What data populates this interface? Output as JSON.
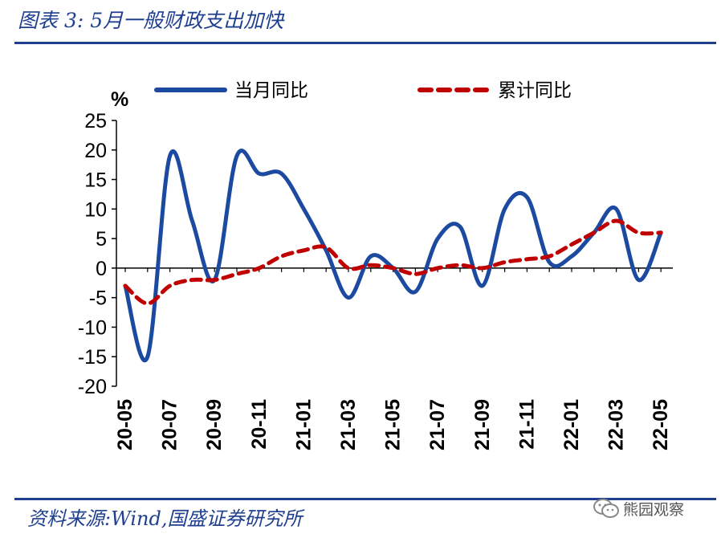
{
  "header": {
    "title": "图表 3:  5月一般财政支出加快"
  },
  "footer": {
    "source": "资料来源:Wind,国盛证券研究所",
    "watermark": "熊园观察"
  },
  "colors": {
    "brand": "#1f3f8f",
    "series_monthly": "#1b4aa0",
    "series_cumulative": "#c00000"
  },
  "chart_data": {
    "type": "line",
    "title": "5月一般财政支出加快",
    "ylabel": "%",
    "xlabel": "",
    "ylim": [
      -20,
      25
    ],
    "yticks": [
      25,
      20,
      15,
      10,
      5,
      0,
      -5,
      -10,
      -15,
      -20
    ],
    "x": [
      "20-05",
      "20-06",
      "20-07",
      "20-08",
      "20-09",
      "20-10",
      "20-11",
      "20-12",
      "21-01",
      "21-02",
      "21-03",
      "21-04",
      "21-05",
      "21-06",
      "21-07",
      "21-08",
      "21-09",
      "21-10",
      "21-11",
      "21-12",
      "22-01",
      "22-02",
      "22-03",
      "22-04",
      "22-05"
    ],
    "xticks": [
      "20-05",
      "20-07",
      "20-09",
      "20-11",
      "21-01",
      "21-03",
      "21-05",
      "21-07",
      "21-09",
      "21-11",
      "22-01",
      "22-03",
      "22-05"
    ],
    "legend_position": "top",
    "series": [
      {
        "name": "当月同比",
        "style": "solid",
        "values": [
          -3,
          -15,
          19,
          8,
          -2,
          19,
          16,
          16,
          10,
          3,
          -5,
          2,
          0,
          -4,
          5,
          7,
          -3,
          10,
          12,
          1,
          2,
          6,
          10,
          -2,
          6
        ]
      },
      {
        "name": "累计同比",
        "style": "dashed",
        "values": [
          -3,
          -6,
          -3,
          -2,
          -2,
          -1,
          0,
          2,
          3,
          3.5,
          0,
          0.5,
          0,
          -1,
          0,
          0.5,
          0,
          1,
          1.5,
          2,
          4,
          6,
          8,
          6,
          6
        ]
      }
    ]
  }
}
